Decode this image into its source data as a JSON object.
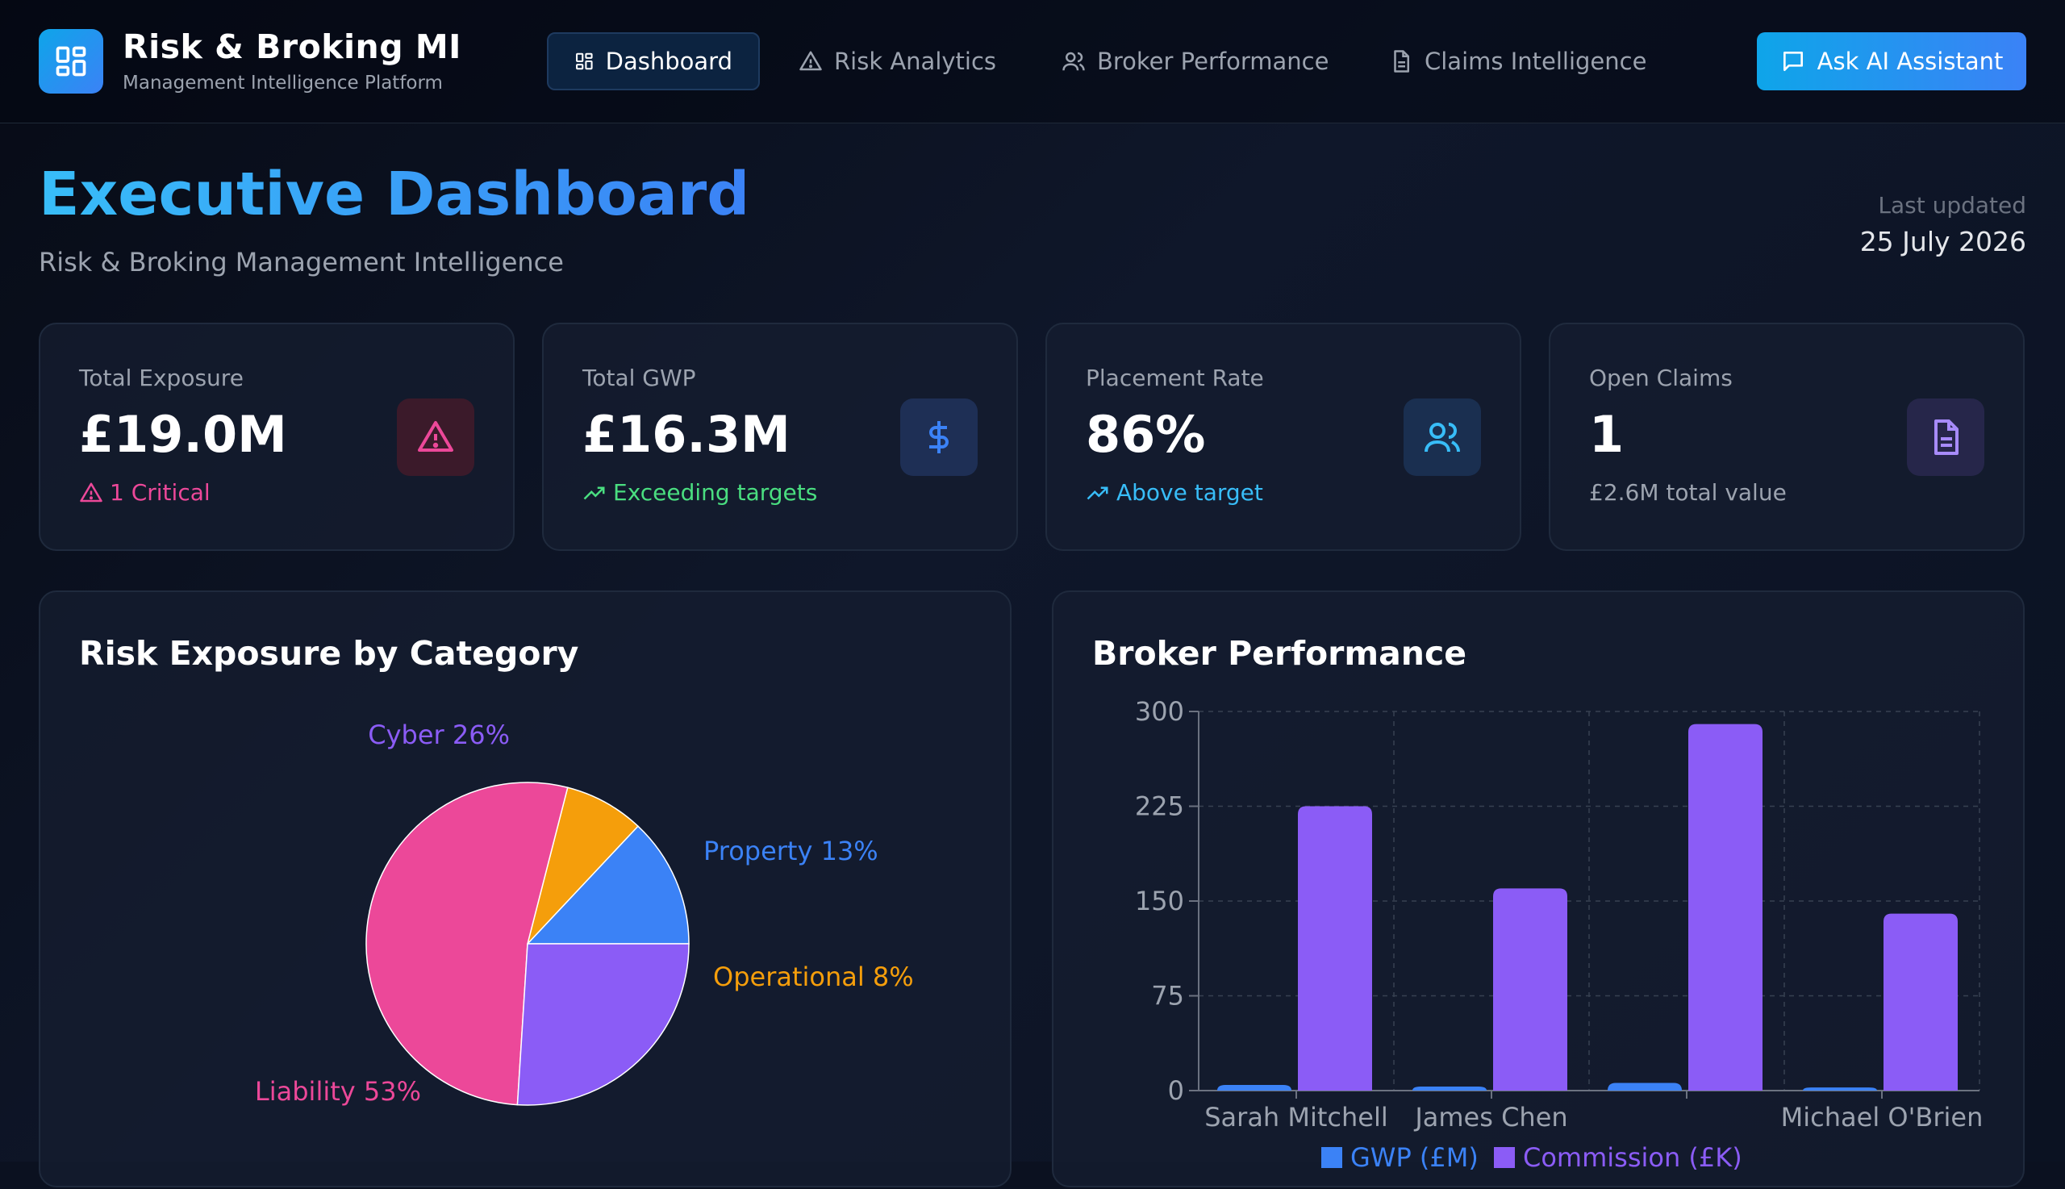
{
  "nav": {
    "brand_title": "Risk & Broking MI",
    "brand_subtitle": "Management Intelligence Platform",
    "items": [
      {
        "label": "Dashboard",
        "icon": "grid-icon",
        "active": true
      },
      {
        "label": "Risk Analytics",
        "icon": "warning-icon",
        "active": false
      },
      {
        "label": "Broker Performance",
        "icon": "users-icon",
        "active": false
      },
      {
        "label": "Claims Intelligence",
        "icon": "document-icon",
        "active": false
      }
    ],
    "ai_button": "Ask AI Assistant"
  },
  "header": {
    "title": "Executive Dashboard",
    "subtitle": "Risk & Broking Management Intelligence",
    "updated_label": "Last updated",
    "updated_value": "25 July 2026"
  },
  "kpis": [
    {
      "label": "Total Exposure",
      "value": "£19.0M",
      "foot": "1 Critical",
      "foot_icon": "warning-icon",
      "icon": "warning-icon",
      "color": "#ec4899",
      "icon_bg": "#3b1a2a"
    },
    {
      "label": "Total GWP",
      "value": "£16.3M",
      "foot": "Exceeding targets",
      "foot_icon": "trend-up-icon",
      "icon": "dollar-icon",
      "color": "#4ade80",
      "icon_bg": "#1e2f55"
    },
    {
      "label": "Placement Rate",
      "value": "86%",
      "foot": "Above target",
      "foot_icon": "trend-up-icon",
      "icon": "users-icon",
      "color": "#38bdf8",
      "icon_bg": "#1a2f50"
    },
    {
      "label": "Open Claims",
      "value": "1",
      "foot": "£2.6M total value",
      "foot_icon": "",
      "icon": "document-icon",
      "color": "#9ca3af",
      "icon_bg": "#26264a"
    }
  ],
  "risk_panel": {
    "title": "Risk Exposure by Category"
  },
  "broker_panel": {
    "title": "Broker Performance"
  },
  "chart_data": [
    {
      "type": "pie",
      "title": "Risk Exposure by Category",
      "slices": [
        {
          "label": "Property 13%",
          "value": 13,
          "color": "#3b82f6"
        },
        {
          "label": "Operational 8%",
          "value": 8,
          "color": "#f59e0b"
        },
        {
          "label": "Liability 53%",
          "value": 53,
          "color": "#ec4899"
        },
        {
          "label": "Cyber 26%",
          "value": 26,
          "color": "#8b5cf6"
        }
      ]
    },
    {
      "type": "bar",
      "title": "Broker Performance",
      "categories": [
        "Sarah Mitchell",
        "James Chen",
        "",
        "Michael O'Brien"
      ],
      "ylim": [
        0,
        300
      ],
      "yticks": [
        0,
        75,
        150,
        225,
        300
      ],
      "grid": true,
      "legend": "bottom",
      "series": [
        {
          "name": "GWP (£M)",
          "color": "#3b82f6",
          "values": [
            4.5,
            3.2,
            6.1,
            2.5
          ]
        },
        {
          "name": "Commission (£K)",
          "color": "#8b5cf6",
          "values": [
            225,
            160,
            290,
            140
          ]
        }
      ]
    }
  ]
}
